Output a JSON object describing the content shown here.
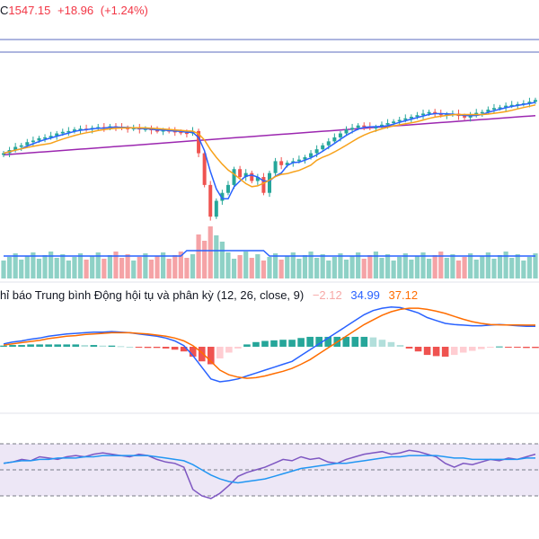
{
  "header": {
    "ticker_suffix": "C",
    "last_price": "1547.15",
    "change": "+18.96",
    "change_pct": "(+1.24%)",
    "change_color": "#f23645"
  },
  "macd": {
    "title": "hỉ báo Trung bình Động hội tụ và phân kỳ (12, 26, close, 9)",
    "histogram_value": "−2.12",
    "macd_value": "34.99",
    "signal_value": "37.12",
    "hist_color": "#f7a9a7",
    "macd_color": "#2962ff",
    "signal_color": "#ff6d00"
  },
  "colors": {
    "up": "#26a69a",
    "down": "#ef5350",
    "ma_fast": "#2962ff",
    "ma_medium": "#f7a21b",
    "ma_long": "#9c27b0",
    "vol_up": "#8ed1c6",
    "vol_down": "#f5a3a6",
    "rsi_line": "#7e57c2",
    "rsi_ma": "#2196f3",
    "rsi_band": "#ede7f6",
    "hist_up_strong": "#26a69a",
    "hist_up_weak": "#b2dfdb",
    "hist_down_strong": "#ef5350",
    "hist_down_weak": "#ffcdd2"
  },
  "chart_data": {
    "type": "candlestick",
    "series": [
      {
        "name": "price",
        "values": [
          1480,
          1484,
          1488,
          1490,
          1494,
          1496,
          1499,
          1500,
          1502,
          1505,
          1507,
          1508,
          1510,
          1511,
          1510,
          1512,
          1513,
          1512,
          1514,
          1513,
          1512,
          1511,
          1512,
          1510,
          1511,
          1509,
          1508,
          1509,
          1508,
          1507,
          1506,
          1505,
          1508,
          1480,
          1440,
          1400,
          1420,
          1430,
          1440,
          1460,
          1450,
          1455,
          1445,
          1450,
          1430,
          1455,
          1470,
          1465,
          1468,
          1470,
          1472,
          1475,
          1480,
          1485,
          1490,
          1495,
          1500,
          1505,
          1510,
          1512,
          1515,
          1514,
          1512,
          1513,
          1516,
          1518,
          1520,
          1522,
          1524,
          1526,
          1528,
          1530,
          1532,
          1530,
          1528,
          1529,
          1530,
          1527,
          1525,
          1528,
          1531,
          1532,
          1535,
          1537,
          1538,
          1540,
          1541,
          1542,
          1543,
          1545,
          1547.15
        ]
      },
      {
        "name": "macd",
        "values": [
          5,
          8,
          10,
          13,
          15,
          18,
          20,
          22,
          23,
          24,
          25,
          25,
          26,
          25,
          24,
          22,
          20,
          18,
          15,
          10,
          2,
          -15,
          -35,
          -55,
          -60,
          -58,
          -55,
          -50,
          -45,
          -40,
          -35,
          -30,
          -25,
          -15,
          -5,
          5,
          15,
          25,
          35,
          45,
          55,
          62,
          66,
          68,
          67,
          63,
          58,
          50,
          45,
          40,
          38,
          37,
          36,
          36,
          37,
          38,
          37,
          36,
          35,
          34.99
        ]
      },
      {
        "name": "signal",
        "values": [
          3,
          5,
          7,
          9,
          11,
          14,
          16,
          18,
          19,
          21,
          22,
          23,
          24,
          24,
          24,
          23,
          22,
          20,
          18,
          15,
          10,
          2,
          -10,
          -25,
          -40,
          -48,
          -52,
          -54,
          -53,
          -50,
          -46,
          -42,
          -37,
          -30,
          -22,
          -12,
          -2,
          8,
          18,
          28,
          38,
          46,
          54,
          60,
          64,
          66,
          66,
          64,
          61,
          57,
          52,
          47,
          43,
          40,
          38,
          37.5,
          37.3,
          37.2,
          37.1,
          37.12
        ]
      },
      {
        "name": "histogram",
        "values": [
          2,
          3,
          3,
          4,
          4,
          4,
          4,
          4,
          4,
          3,
          3,
          2,
          2,
          1,
          0,
          -1,
          -2,
          -2,
          -3,
          -5,
          -8,
          -17,
          -25,
          -30,
          -20,
          -10,
          -3,
          4,
          8,
          10,
          11,
          12,
          12,
          15,
          17,
          17,
          17,
          17,
          17,
          17,
          17,
          16,
          12,
          8,
          3,
          -3,
          -8,
          -14,
          -16,
          -17,
          -14,
          -10,
          -7,
          -4,
          -1,
          0.5,
          -0.3,
          -1.2,
          -2.1,
          -2.12
        ]
      },
      {
        "name": "rsi",
        "values": [
          55,
          56,
          58,
          57,
          60,
          59,
          58,
          60,
          61,
          60,
          62,
          63,
          62,
          61,
          60,
          62,
          61,
          58,
          56,
          55,
          52,
          35,
          30,
          28,
          32,
          38,
          45,
          48,
          50,
          52,
          55,
          58,
          57,
          60,
          58,
          59,
          56,
          55,
          58,
          60,
          62,
          63,
          64,
          62,
          63,
          65,
          64,
          62,
          60,
          55,
          52,
          55,
          54,
          56,
          58,
          57,
          59,
          58,
          60,
          62
        ]
      },
      {
        "name": "rsi_ma",
        "values": [
          55,
          56,
          57,
          57,
          58,
          58,
          59,
          59,
          59,
          60,
          60,
          61,
          61,
          61,
          61,
          61,
          61,
          60,
          59,
          58,
          57,
          54,
          50,
          46,
          43,
          41,
          40,
          41,
          42,
          43,
          45,
          47,
          49,
          51,
          52,
          53,
          54,
          55,
          55,
          56,
          57,
          58,
          59,
          60,
          60,
          61,
          61,
          61,
          61,
          60,
          59,
          59,
          58,
          58,
          58,
          58,
          58,
          58,
          59,
          59
        ]
      }
    ],
    "panes": [
      "price",
      "volume",
      "macd",
      "rsi"
    ]
  }
}
